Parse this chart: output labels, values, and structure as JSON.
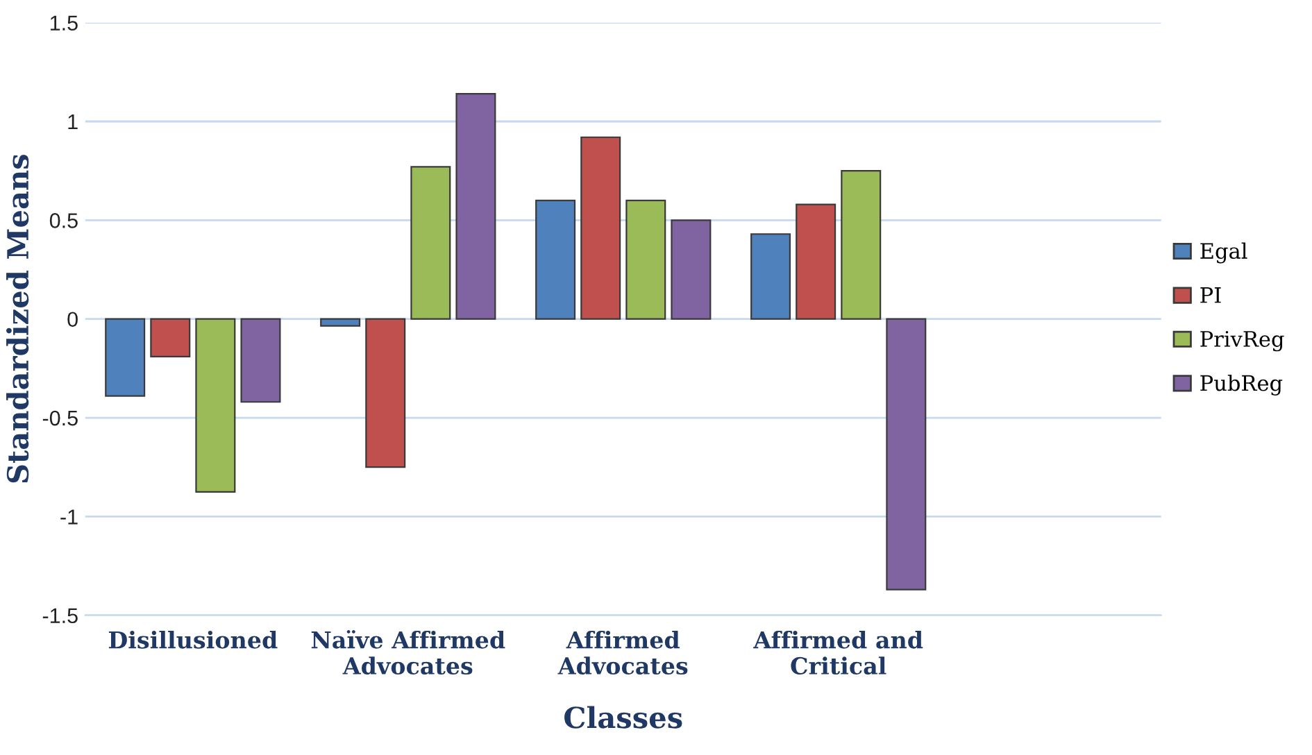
{
  "chart_data": {
    "type": "bar",
    "xlabel": "Classes",
    "ylabel": "Standardized Means",
    "categories": [
      "Disillusioned",
      "Naïve Affirmed\nAdvocates",
      "Affirmed\nAdvocates",
      "Affirmed and\nCritical",
      null
    ],
    "series": [
      {
        "name": "Egal",
        "color": "#4f81bd",
        "values": [
          -0.39,
          -0.035,
          0.6,
          0.43,
          null
        ]
      },
      {
        "name": "PI",
        "color": "#c0504d",
        "values": [
          -0.19,
          -0.75,
          0.92,
          0.58,
          null
        ]
      },
      {
        "name": "PrivReg",
        "color": "#9bbb59",
        "values": [
          -0.875,
          0.77,
          0.6,
          0.75,
          null
        ]
      },
      {
        "name": "PubReg",
        "color": "#8064a2",
        "values": [
          -0.42,
          1.14,
          0.5,
          -1.37,
          null
        ]
      }
    ],
    "ylim": [
      -1.5,
      1.5
    ],
    "yticks": [
      -1.5,
      -1,
      -0.5,
      0,
      0.5,
      1,
      1.5
    ],
    "grid": "y",
    "legend": "right"
  }
}
